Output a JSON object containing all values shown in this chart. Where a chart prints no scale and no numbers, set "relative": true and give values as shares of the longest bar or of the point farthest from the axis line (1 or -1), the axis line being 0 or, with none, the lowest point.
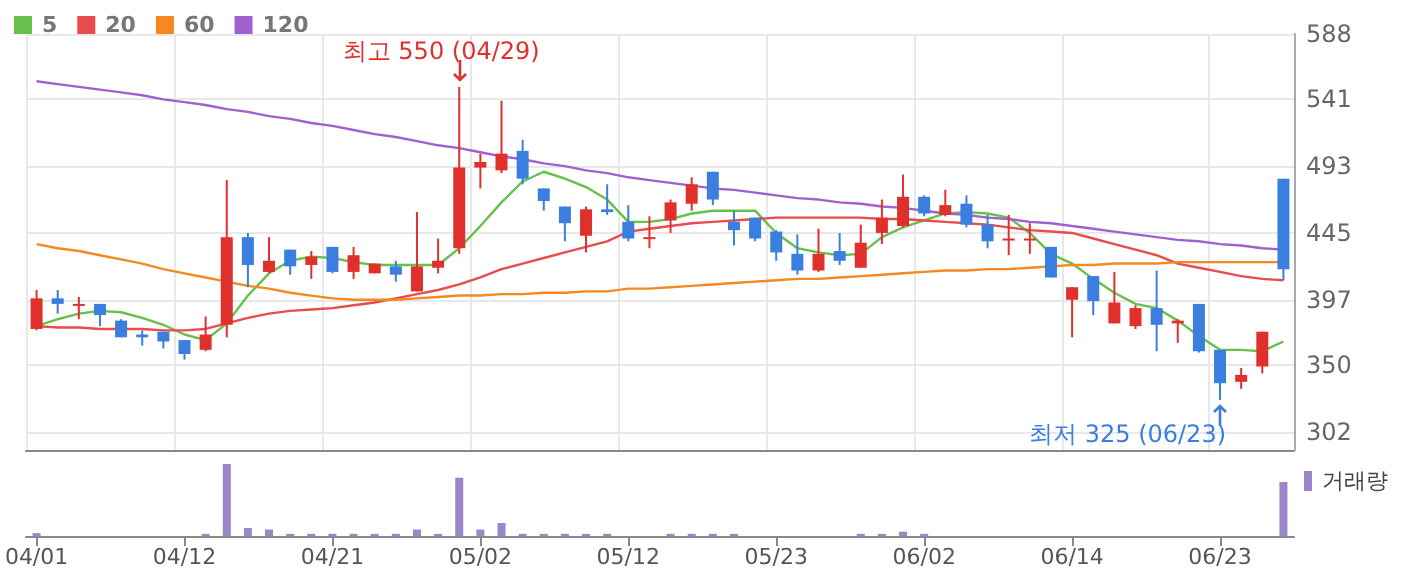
{
  "chart_data": [
    {
      "type": "candlestick",
      "legend": "top left",
      "grid": true,
      "tick_labels": "y",
      "ylim": [
        289,
        588
      ],
      "yticks": [
        302,
        350,
        397,
        445,
        493,
        541,
        588
      ],
      "categories": [
        "04/01",
        null,
        null,
        null,
        null,
        null,
        null,
        "04/12",
        null,
        null,
        null,
        null,
        null,
        null,
        "04/21",
        null,
        null,
        null,
        null,
        null,
        null,
        "05/02",
        null,
        null,
        null,
        null,
        null,
        null,
        "05/12",
        null,
        null,
        null,
        null,
        null,
        null,
        "05/23",
        null,
        null,
        null,
        null,
        null,
        null,
        "06/02",
        null,
        null,
        null,
        null,
        null,
        null,
        "06/14",
        null,
        null,
        null,
        null,
        null,
        null,
        "06/23",
        null,
        null,
        null
      ],
      "ohlc": [
        [
          376,
          404,
          375,
          398
        ],
        [
          398,
          404,
          387,
          394
        ],
        [
          393,
          399,
          383,
          394
        ],
        [
          394,
          394,
          378,
          386
        ],
        [
          382,
          383,
          370,
          370
        ],
        [
          372,
          375,
          364,
          370
        ],
        [
          374,
          374,
          362,
          367
        ],
        [
          368,
          368,
          354,
          358
        ],
        [
          361,
          385,
          360,
          372
        ],
        [
          379,
          483,
          370,
          442
        ],
        [
          442,
          445,
          406,
          422
        ],
        [
          417,
          442,
          416,
          425
        ],
        [
          433,
          433,
          415,
          421
        ],
        [
          422,
          432,
          412,
          428
        ],
        [
          435,
          435,
          416,
          417
        ],
        [
          417,
          435,
          412,
          429
        ],
        [
          416,
          423,
          416,
          423
        ],
        [
          421,
          425,
          410,
          415
        ],
        [
          403,
          460,
          403,
          421
        ],
        [
          420,
          441,
          416,
          425
        ],
        [
          434,
          550,
          430,
          492
        ],
        [
          492,
          502,
          477,
          496
        ],
        [
          490,
          540,
          488,
          502
        ],
        [
          504,
          512,
          480,
          484
        ],
        [
          477,
          477,
          461,
          468
        ],
        [
          464,
          464,
          439,
          452
        ],
        [
          443,
          464,
          431,
          462
        ],
        [
          462,
          480,
          458,
          460
        ],
        [
          453,
          465,
          439,
          441
        ],
        [
          441,
          457,
          434,
          442
        ],
        [
          454,
          469,
          445,
          467
        ],
        [
          466,
          485,
          461,
          480
        ],
        [
          489,
          489,
          465,
          469
        ],
        [
          453,
          461,
          436,
          447
        ],
        [
          456,
          456,
          439,
          441
        ],
        [
          446,
          447,
          425,
          431
        ],
        [
          430,
          444,
          415,
          418
        ],
        [
          418,
          448,
          417,
          430
        ],
        [
          432,
          445,
          422,
          425
        ],
        [
          420,
          451,
          420,
          438
        ],
        [
          445,
          469,
          437,
          456
        ],
        [
          450,
          487,
          449,
          471
        ],
        [
          471,
          472,
          457,
          459
        ],
        [
          458,
          476,
          457,
          465
        ],
        [
          466,
          472,
          449,
          451
        ],
        [
          451,
          458,
          434,
          439
        ],
        [
          440,
          458,
          429,
          441
        ],
        [
          440,
          452,
          430,
          441
        ],
        [
          435,
          435,
          413,
          413
        ],
        [
          397,
          406,
          370,
          406
        ],
        [
          414,
          414,
          386,
          396
        ],
        [
          380,
          417,
          380,
          395
        ],
        [
          378,
          393,
          376,
          391
        ],
        [
          391,
          418,
          360,
          379
        ],
        [
          380,
          383,
          366,
          382
        ],
        [
          394,
          394,
          359,
          360
        ],
        [
          361,
          361,
          325,
          337
        ],
        [
          338,
          348,
          333,
          343
        ],
        [
          349,
          374,
          344,
          374
        ],
        [
          484,
          484,
          411,
          419
        ]
      ],
      "colors": [
        "#e0302c",
        "#3a7ee0",
        "#e0302c",
        "#3a7ee0",
        "#3a7ee0",
        "#3a7ee0",
        "#3a7ee0",
        "#3a7ee0",
        "#e0302c",
        "#e0302c",
        "#3a7ee0",
        "#e0302c",
        "#3a7ee0",
        "#e0302c",
        "#3a7ee0",
        "#e0302c",
        "#e0302c",
        "#3a7ee0",
        "#e0302c",
        "#e0302c",
        "#e0302c",
        "#e0302c",
        "#e0302c",
        "#3a7ee0",
        "#3a7ee0",
        "#3a7ee0",
        "#e0302c",
        "#3a7ee0",
        "#3a7ee0",
        "#e0302c",
        "#e0302c",
        "#e0302c",
        "#3a7ee0",
        "#3a7ee0",
        "#3a7ee0",
        "#3a7ee0",
        "#3a7ee0",
        "#e0302c",
        "#3a7ee0",
        "#e0302c",
        "#e0302c",
        "#e0302c",
        "#3a7ee0",
        "#e0302c",
        "#3a7ee0",
        "#3a7ee0",
        "#e0302c",
        "#e0302c",
        "#3a7ee0",
        "#e0302c",
        "#3a7ee0",
        "#e0302c",
        "#e0302c",
        "#3a7ee0",
        "#e0302c",
        "#3a7ee0",
        "#3a7ee0",
        "#e0302c",
        "#e0302c",
        "#3a7ee0"
      ],
      "series": [
        {
          "type": "line",
          "name": "5",
          "color": "#66c04a",
          "marker": "none",
          "values": [
            378,
            383,
            387,
            389,
            388,
            384,
            379,
            372,
            368,
            380,
            400,
            416,
            425,
            428,
            427,
            424,
            422,
            422,
            422,
            422,
            434,
            450,
            467,
            482,
            489,
            484,
            478,
            469,
            453,
            453,
            455,
            459,
            461,
            461,
            461,
            445,
            434,
            431,
            429,
            430,
            442,
            449,
            454,
            459,
            460,
            459,
            456,
            445,
            430,
            423,
            412,
            402,
            394,
            391,
            382,
            371,
            361,
            361,
            360,
            367
          ]
        },
        {
          "type": "line",
          "name": "20",
          "color": "#e84c4c",
          "marker": "none",
          "values": [
            378,
            377,
            377,
            376,
            376,
            376,
            375,
            375,
            376,
            380,
            384,
            387,
            389,
            390,
            391,
            393,
            395,
            398,
            401,
            404,
            408,
            413,
            419,
            423,
            427,
            431,
            435,
            439,
            446,
            448,
            450,
            452,
            453,
            454,
            455,
            456,
            456,
            456,
            456,
            456,
            455,
            455,
            454,
            453,
            452,
            451,
            449,
            447,
            446,
            445,
            441,
            437,
            433,
            429,
            423,
            420,
            417,
            414,
            412,
            411
          ]
        },
        {
          "type": "line",
          "name": "60",
          "color": "#f5891f",
          "marker": "none",
          "values": [
            437,
            434,
            432,
            429,
            426,
            423,
            419,
            416,
            413,
            410,
            407,
            405,
            402,
            400,
            398,
            397,
            397,
            397,
            398,
            399,
            400,
            400,
            401,
            401,
            402,
            402,
            403,
            403,
            405,
            405,
            406,
            407,
            408,
            409,
            410,
            411,
            412,
            412,
            413,
            414,
            415,
            416,
            417,
            418,
            418,
            419,
            419,
            420,
            421,
            422,
            422,
            423,
            423,
            423,
            424,
            424,
            424,
            424,
            424,
            424
          ]
        },
        {
          "type": "line",
          "name": "120",
          "color": "#a060d0",
          "marker": "none",
          "values": [
            554,
            552,
            550,
            548,
            546,
            544,
            541,
            539,
            537,
            534,
            532,
            529,
            527,
            524,
            522,
            519,
            516,
            514,
            511,
            508,
            506,
            503,
            500,
            498,
            495,
            493,
            490,
            488,
            485,
            483,
            481,
            479,
            477,
            476,
            474,
            472,
            470,
            469,
            467,
            466,
            464,
            463,
            461,
            459,
            458,
            456,
            455,
            453,
            452,
            450,
            448,
            446,
            444,
            442,
            440,
            439,
            437,
            436,
            434,
            433
          ]
        }
      ],
      "annotations": [
        "최고 550 (04/29)",
        {
          "text": "최저 325 (06/23)",
          "x": "06/23",
          "y": 325
        }
      ]
    },
    {
      "type": "bar",
      "relative": true,
      "legend": "top right",
      "tick_labels": "x",
      "categories": [
        "04/01",
        null,
        null,
        null,
        null,
        null,
        null,
        "04/12",
        null,
        null,
        null,
        null,
        null,
        null,
        "04/21",
        null,
        null,
        null,
        null,
        null,
        null,
        "05/02",
        null,
        null,
        null,
        null,
        null,
        null,
        "05/12",
        null,
        null,
        null,
        null,
        null,
        null,
        "05/23",
        null,
        null,
        null,
        null,
        null,
        null,
        "06/02",
        null,
        null,
        null,
        null,
        null,
        null,
        "06/14",
        null,
        null,
        null,
        null,
        null,
        null,
        "06/23",
        null,
        null,
        null
      ],
      "series": [
        {
          "name": "거래량",
          "color": "#9b86c9",
          "values": [
            0.04,
            0,
            0,
            0,
            0,
            0,
            0,
            0,
            0.03,
            1,
            0.11,
            0.09,
            0.03,
            0.03,
            0.03,
            0.03,
            0.03,
            0.03,
            0.09,
            0.03,
            0.81,
            0.09,
            0.18,
            0.03,
            0.03,
            0.03,
            0.03,
            0.03,
            0,
            0,
            0.03,
            0.03,
            0.03,
            0.03,
            0,
            0,
            0,
            0,
            0,
            0.03,
            0.03,
            0.06,
            0.03,
            0,
            0,
            0,
            0,
            0,
            0,
            0,
            0,
            0,
            0,
            0,
            0,
            0,
            0,
            0,
            0,
            0.75
          ]
        }
      ]
    }
  ]
}
